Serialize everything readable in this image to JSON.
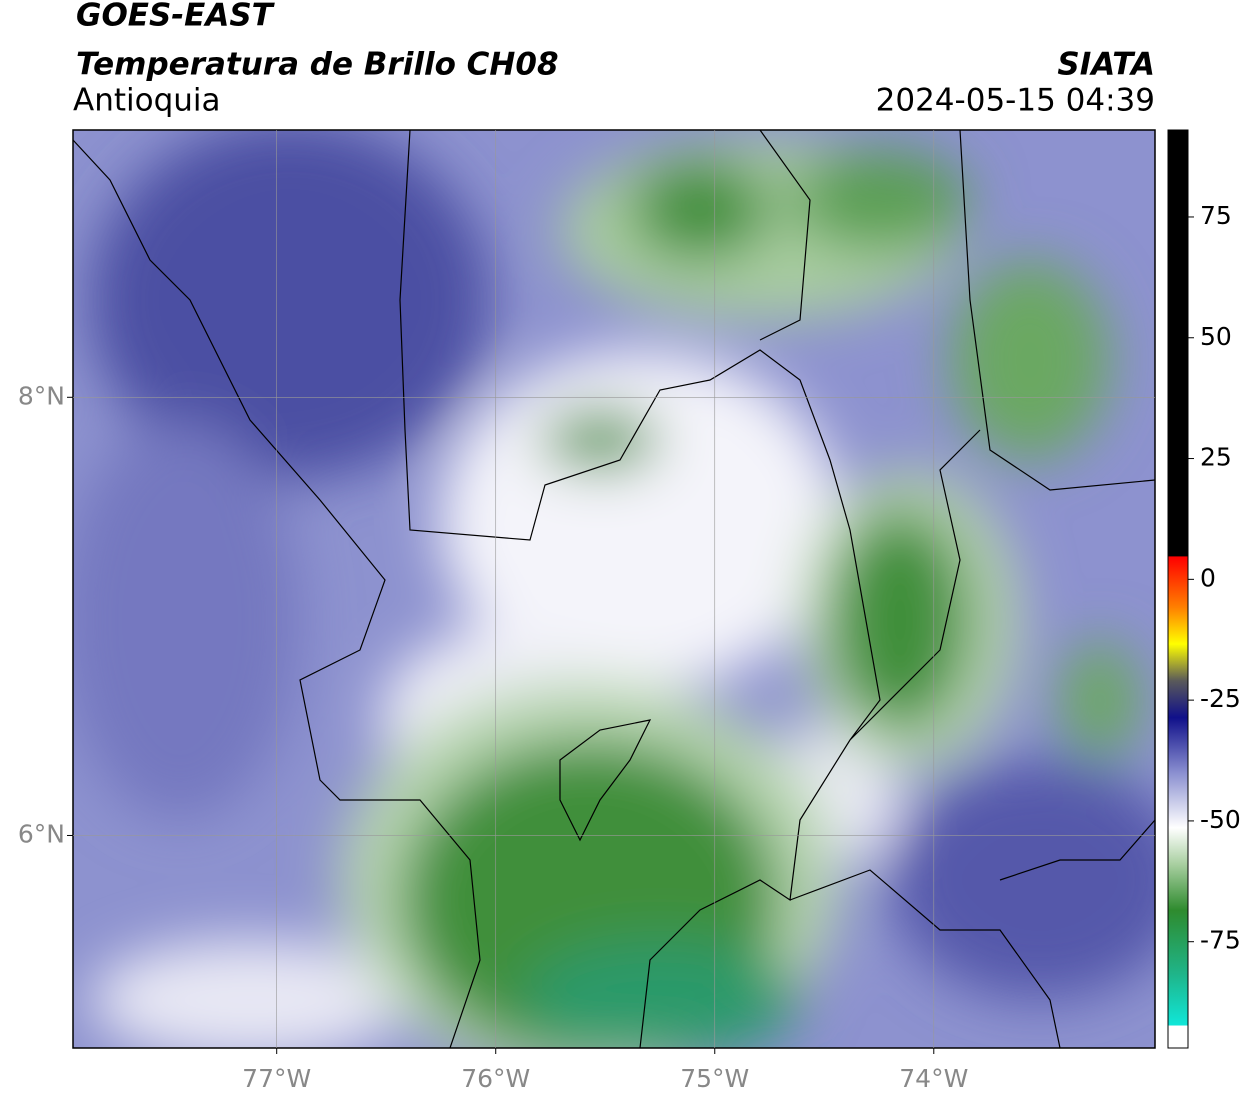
{
  "header": {
    "title": "GOES-EAST",
    "subtitle": "Temperatura de Brillo CH08",
    "region": "Antioquia",
    "source": "SIATA",
    "datetime": "2024-05-15 04:39"
  },
  "map": {
    "xlim": [
      -77.93,
      -72.99
    ],
    "ylim": [
      5.03,
      9.22
    ],
    "xticks": [
      {
        "value": -77,
        "label": "77°W"
      },
      {
        "value": -76,
        "label": "76°W"
      },
      {
        "value": -75,
        "label": "75°W"
      },
      {
        "value": -74,
        "label": "74°W"
      }
    ],
    "yticks": [
      {
        "value": 8,
        "label": "8°N"
      },
      {
        "value": 6,
        "label": "6°N"
      }
    ],
    "grid": true
  },
  "colorbar": {
    "range": [
      -97,
      93
    ],
    "ticks": [
      75,
      50,
      25,
      0,
      -25,
      -50,
      -75
    ]
  }
}
